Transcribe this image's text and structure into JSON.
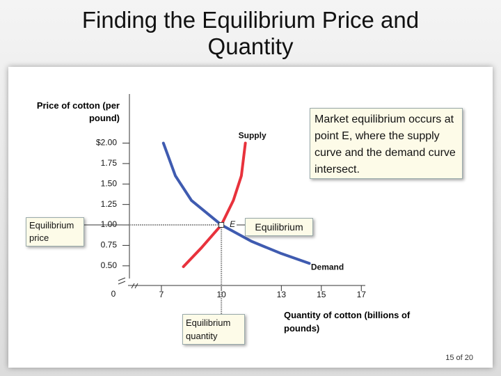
{
  "title": "Finding the Equilibrium Price and Quantity",
  "page_number": "15 of 20",
  "chart_data": {
    "type": "line",
    "y_label": "Price of cotton (per pound)",
    "x_label": "Quantity of cotton (billions of pounds)",
    "origin_label": "0",
    "xlim": [
      5.4,
      17.2
    ],
    "ylim": [
      0.26,
      2.6
    ],
    "xticks": [
      7,
      10,
      13,
      15,
      17
    ],
    "yticks": [
      {
        "value": 2.0,
        "label": "$2.00"
      },
      1.75,
      {
        "value": 1.5,
        "label": "1.50"
      },
      1.25,
      {
        "value": 1.0,
        "label": "1.00"
      },
      {
        "value": 0.75,
        "label": "0.75"
      },
      {
        "value": 0.5,
        "label": "0.50"
      }
    ],
    "series": [
      {
        "name": "Supply",
        "color": "#e8323c",
        "x": [
          8.1,
          9,
          10,
          10.6,
          11,
          11.2
        ],
        "values": [
          0.49,
          0.72,
          1.0,
          1.3,
          1.6,
          2.0
        ]
      },
      {
        "name": "Demand",
        "color": "#3f5bb0",
        "x": [
          7.1,
          7.7,
          8.5,
          10,
          11.5,
          13,
          14.4
        ],
        "values": [
          2.0,
          1.6,
          1.3,
          1.0,
          0.8,
          0.65,
          0.53
        ]
      }
    ],
    "equilibrium": {
      "label": "E",
      "quantity": 10,
      "price": 1.0
    },
    "annotations": {
      "main": "Market equilibrium occurs at point E, where the supply curve and the demand curve intersect.",
      "equilibrium": "Equilibrium",
      "price": "Equilibrium price",
      "quantity": "Equilibrium quantity"
    }
  }
}
